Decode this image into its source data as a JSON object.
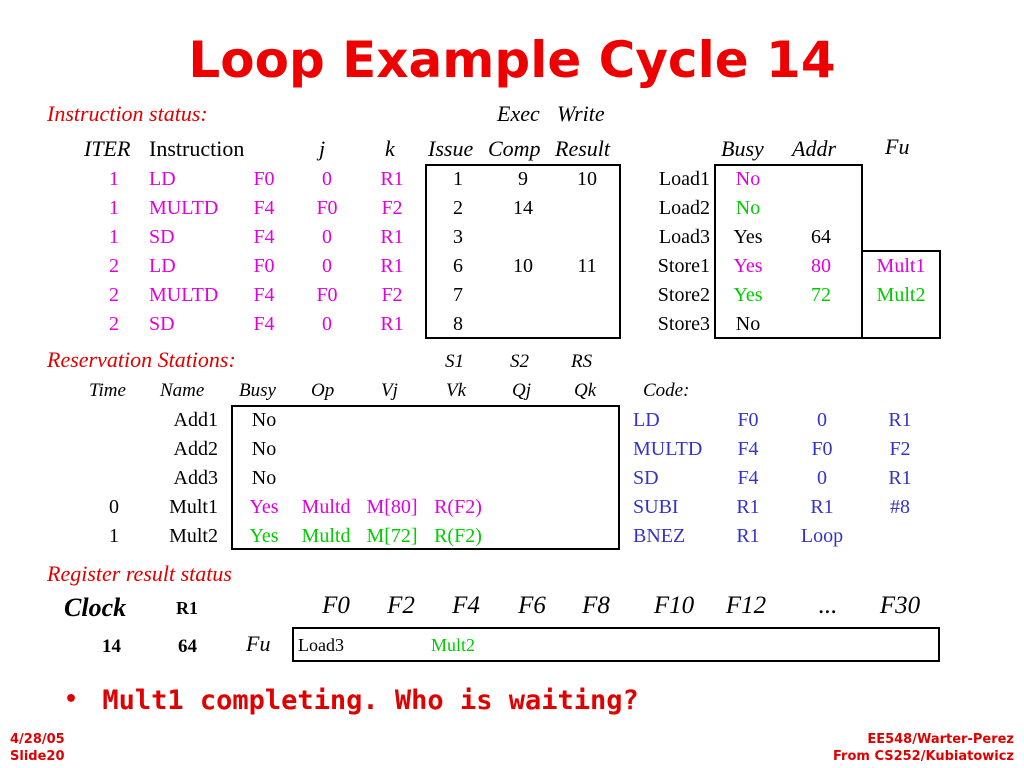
{
  "title": "Loop Example Cycle 14",
  "instruction_status": {
    "section_label": "Instruction status:",
    "exec_label": "Exec",
    "write_label": "Write",
    "headers": [
      "ITER",
      "Instruction",
      "j",
      "k",
      "Issue",
      "Comp",
      "Result"
    ],
    "rows": [
      {
        "iter": "1",
        "op": "LD",
        "reg": "F0",
        "j": "0",
        "k": "R1",
        "issue": "1",
        "comp": "9",
        "result": "10"
      },
      {
        "iter": "1",
        "op": "MULTD",
        "reg": "F4",
        "j": "F0",
        "k": "F2",
        "issue": "2",
        "comp": "14",
        "result": ""
      },
      {
        "iter": "1",
        "op": "SD",
        "reg": "F4",
        "j": "0",
        "k": "R1",
        "issue": "3",
        "comp": "",
        "result": ""
      },
      {
        "iter": "2",
        "op": "LD",
        "reg": "F0",
        "j": "0",
        "k": "R1",
        "issue": "6",
        "comp": "10",
        "result": "11"
      },
      {
        "iter": "2",
        "op": "MULTD",
        "reg": "F4",
        "j": "F0",
        "k": "F2",
        "issue": "7",
        "comp": "",
        "result": ""
      },
      {
        "iter": "2",
        "op": "SD",
        "reg": "F4",
        "j": "0",
        "k": "R1",
        "issue": "8",
        "comp": "",
        "result": ""
      }
    ]
  },
  "load_store": {
    "headers": [
      "Busy",
      "Addr",
      "Fu"
    ],
    "rows": [
      {
        "name": "Load1",
        "busy": "No",
        "addr": "",
        "fu": "",
        "color": "#e000e0"
      },
      {
        "name": "Load2",
        "busy": "No",
        "addr": "",
        "fu": "",
        "color": "#00cc00"
      },
      {
        "name": "Load3",
        "busy": "Yes",
        "addr": "64",
        "fu": "",
        "color": "#000000"
      },
      {
        "name": "Store1",
        "busy": "Yes",
        "addr": "80",
        "fu": "Mult1",
        "color": "#e000e0"
      },
      {
        "name": "Store2",
        "busy": "Yes",
        "addr": "72",
        "fu": "Mult2",
        "color": "#00cc00"
      },
      {
        "name": "Store3",
        "busy": "No",
        "addr": "",
        "fu": "",
        "color": "#000000"
      }
    ]
  },
  "reservation_stations": {
    "section_label": "Reservation Stations:",
    "s1_label": "S1",
    "s2_label": "S2",
    "rs_label": "RS",
    "headers": [
      "Time",
      "Name",
      "Busy",
      "Op",
      "Vj",
      "Vk",
      "Qj",
      "Qk"
    ],
    "rows": [
      {
        "time": "",
        "name": "Add1",
        "busy": "No",
        "op": "",
        "vj": "",
        "vk": "",
        "color": "#000000"
      },
      {
        "time": "",
        "name": "Add2",
        "busy": "No",
        "op": "",
        "vj": "",
        "vk": "",
        "color": "#000000"
      },
      {
        "time": "",
        "name": "Add3",
        "busy": "No",
        "op": "",
        "vj": "",
        "vk": "",
        "color": "#000000"
      },
      {
        "time": "0",
        "name": "Mult1",
        "busy": "Yes",
        "op": "Multd",
        "vj": "M[80]",
        "vk": "R(F2)",
        "color": "#e000e0"
      },
      {
        "time": "1",
        "name": "Mult2",
        "busy": "Yes",
        "op": "Multd",
        "vj": "M[72]",
        "vk": "R(F2)",
        "color": "#00cc00"
      }
    ]
  },
  "code": {
    "label": "Code:",
    "rows": [
      [
        "LD",
        "F0",
        "0",
        "R1"
      ],
      [
        "MULTD",
        "F4",
        "F0",
        "F2"
      ],
      [
        "SD",
        "F4",
        "0",
        "R1"
      ],
      [
        "SUBI",
        "R1",
        "R1",
        "#8"
      ],
      [
        "BNEZ",
        "R1",
        "Loop",
        ""
      ]
    ]
  },
  "register_result": {
    "section_label": "Register result status",
    "clock_label": "Clock",
    "r1_label": "R1",
    "clock_value": "14",
    "r1_value": "64",
    "fu_label": "Fu",
    "registers": [
      "F0",
      "F2",
      "F4",
      "F6",
      "F8",
      "F10",
      "F12",
      "...",
      "F30"
    ],
    "fu_values": [
      "Load3",
      "",
      "Mult2",
      "",
      "",
      "",
      "",
      "",
      ""
    ]
  },
  "bullet": "Mult1 completing.  Who is waiting?",
  "footer": {
    "left_line1": "4/28/05",
    "left_line2": "Slide20",
    "right_line1": "EE548/Warter-Perez",
    "right_line2": "From CS252/Kubiatowicz"
  },
  "colors": {
    "title": "#ee0000",
    "magenta": "#e000e0",
    "green": "#00cc00",
    "blue": "#3333cc"
  }
}
